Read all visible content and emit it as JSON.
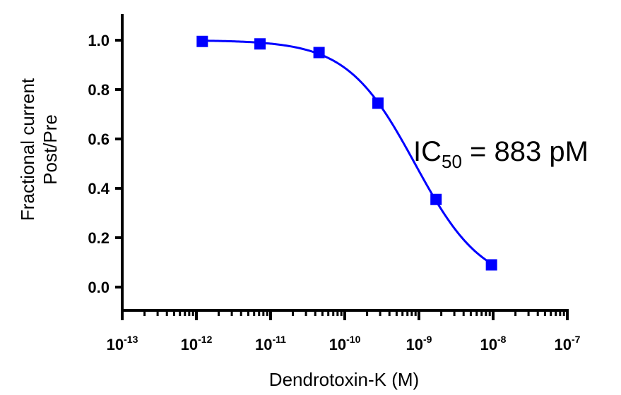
{
  "chart_data": {
    "type": "line",
    "title": "",
    "xlabel": "Dendrotoxin-K (M)",
    "ylabel_lines": [
      "Fractional current",
      "Post/Pre"
    ],
    "x_scale": "log",
    "xlim": [
      1e-13,
      1e-07
    ],
    "ylim": [
      -0.1,
      1.1
    ],
    "x_tick_labels": [
      {
        "value": 1e-13,
        "base": "10",
        "exp": "-13"
      },
      {
        "value": 1e-12,
        "base": "10",
        "exp": "-12"
      },
      {
        "value": 1e-11,
        "base": "10",
        "exp": "-11"
      },
      {
        "value": 1e-10,
        "base": "10",
        "exp": "-10"
      },
      {
        "value": 1e-09,
        "base": "10",
        "exp": "-9"
      },
      {
        "value": 1e-08,
        "base": "10",
        "exp": "-8"
      },
      {
        "value": 1e-07,
        "base": "10",
        "exp": "-7"
      }
    ],
    "y_ticks": [
      {
        "value": 0.0,
        "label": "0.0"
      },
      {
        "value": 0.2,
        "label": "0.2"
      },
      {
        "value": 0.4,
        "label": "0.4"
      },
      {
        "value": 0.6,
        "label": "0.6"
      },
      {
        "value": 0.8,
        "label": "0.8"
      },
      {
        "value": 1.0,
        "label": "1.0"
      }
    ],
    "series": [
      {
        "name": "Dendrotoxin-K",
        "color": "#0000ff",
        "marker": "square",
        "x": [
          1.2e-12,
          7.2e-12,
          4.5e-11,
          2.8e-10,
          1.7e-09,
          9.5e-09
        ],
        "y": [
          0.995,
          0.985,
          0.95,
          0.745,
          0.355,
          0.09
        ]
      }
    ],
    "fit": {
      "model": "sigmoidal dose-response",
      "top": 1.0,
      "bottom": 0.0,
      "ic50": 8.83e-10,
      "hill_slope": 0.95,
      "color": "#0000ff"
    },
    "annotation": {
      "prefix": "IC",
      "subscript": "50",
      "suffix": " = 883 pM"
    }
  }
}
